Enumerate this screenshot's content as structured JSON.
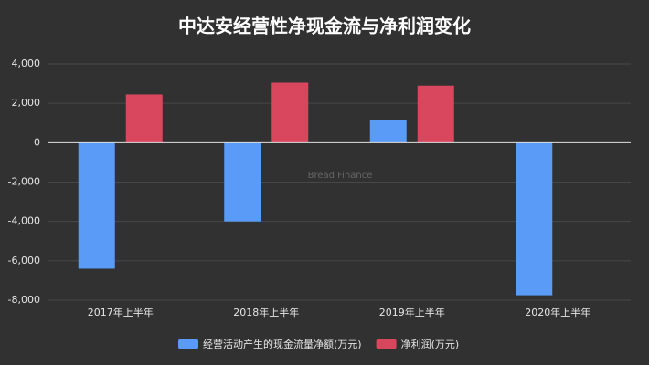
{
  "chart_data": {
    "type": "bar",
    "title": "中达安经营性净现金流与净利润变化",
    "watermark": "Bread Finance",
    "categories": [
      "2017年上半年",
      "2018年上半年",
      "2019年上半年",
      "2020年上半年"
    ],
    "series": [
      {
        "name": "经营活动产生的现金流量净额(万元)",
        "color": "#5b9bf8",
        "values": [
          -6400,
          -4000,
          1150,
          -7750
        ]
      },
      {
        "name": "净利润(万元)",
        "color": "#d9475f",
        "values": [
          2450,
          3050,
          2900,
          0
        ]
      }
    ],
    "ylim": [
      -8000,
      4000
    ],
    "yticks": [
      {
        "value": -8000,
        "label": "-8,000"
      },
      {
        "value": -6000,
        "label": "-6,000"
      },
      {
        "value": -4000,
        "label": "-4,000"
      },
      {
        "value": -2000,
        "label": "-2,000"
      },
      0,
      {
        "value": 2000,
        "label": "2,000"
      },
      {
        "value": 4000,
        "label": "4,000"
      }
    ],
    "grid": true,
    "legend": "bottom"
  }
}
